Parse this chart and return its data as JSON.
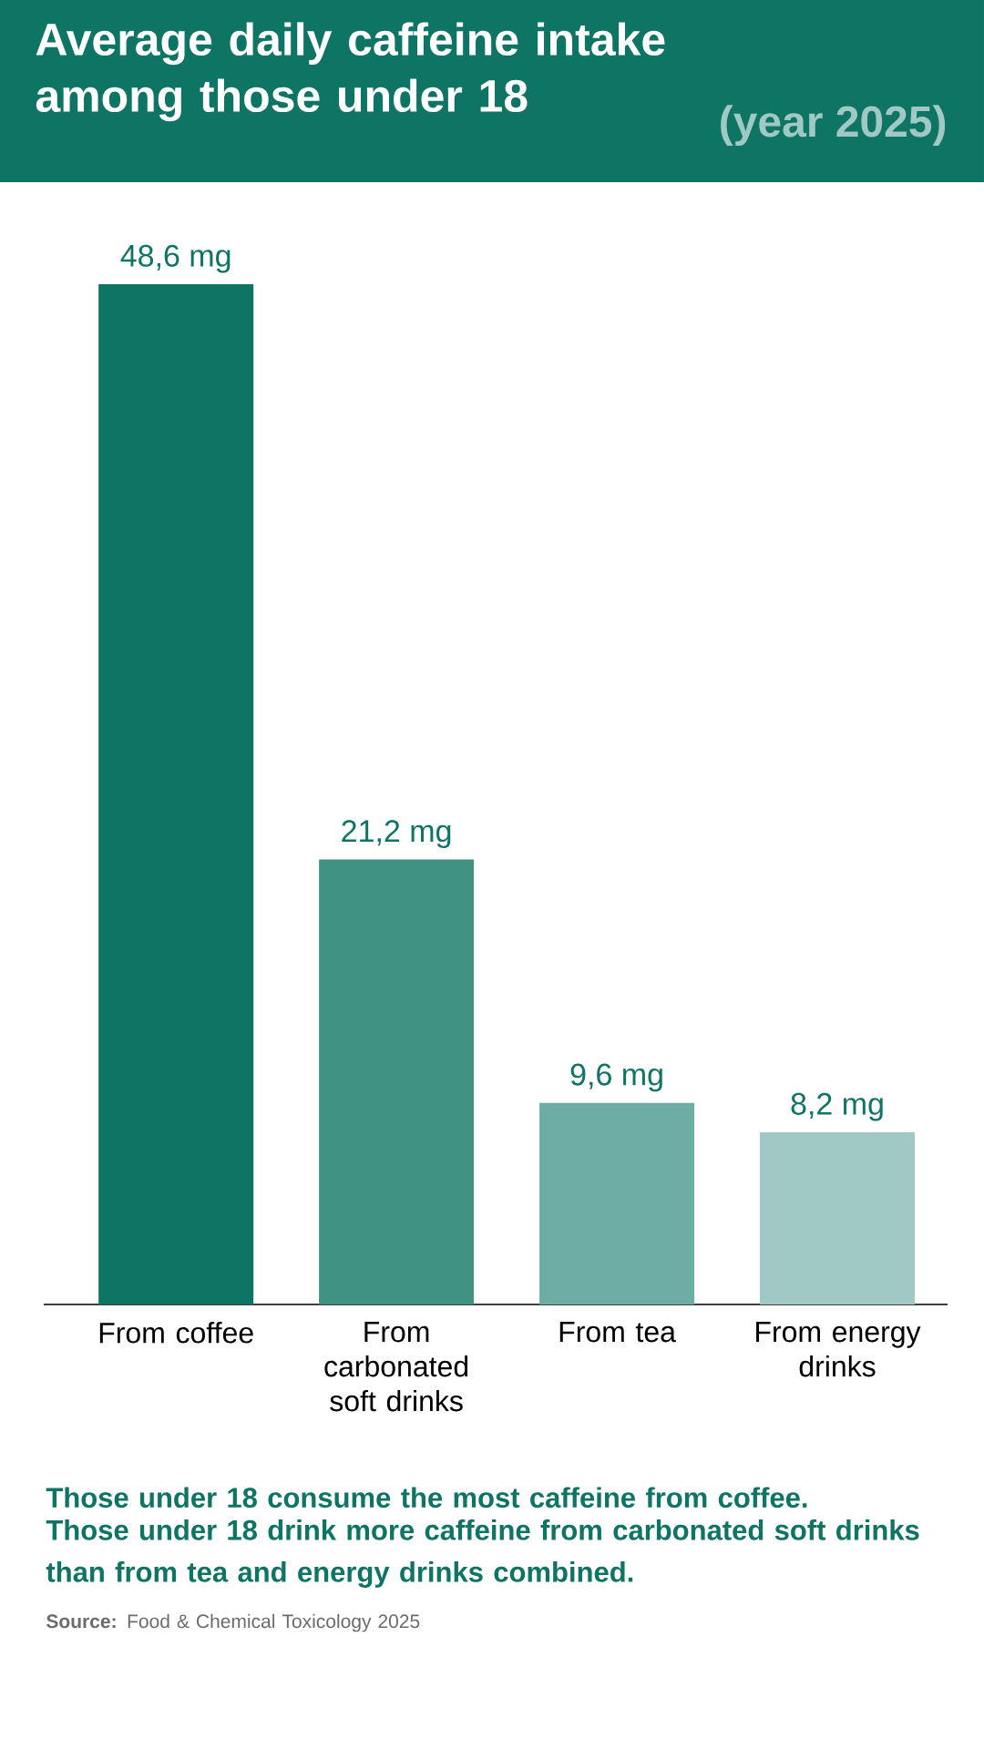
{
  "chart_data": {
    "type": "bar",
    "title": "Average daily caffeine intake among those under 18",
    "subtitle": "(year 2025)",
    "categories": [
      "From coffee",
      "From carbonated soft drinks",
      "From tea",
      "From energy drinks"
    ],
    "values": [
      48.6,
      21.2,
      9.6,
      8.2
    ],
    "colors": [
      "#0e7463",
      "#409282",
      "#6dada5",
      "#a0c8c4"
    ],
    "annotations": [
      "Those under 18 consume the most caffeine from coffee.",
      "Those under 18 drink more caffeine from carbonated soft drinks than from tea and energy drinks combined.",
      "**Source:** Food & Chemical Toxicology 2025"
    ],
    "value_labels": [
      "48,6 mg",
      "21,2 mg",
      "9,6 mg",
      "8,2 mg"
    ]
  }
}
